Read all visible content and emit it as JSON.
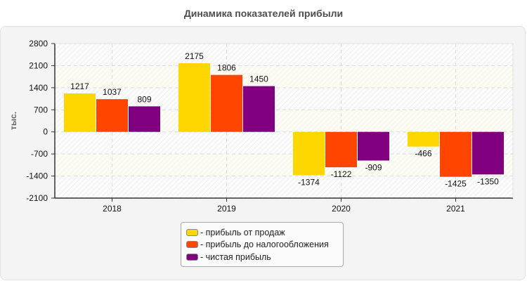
{
  "chart_data": {
    "type": "bar",
    "title": "Динамика показателей прибыли",
    "xlabel": "",
    "ylabel": "тыс.",
    "ylim": [
      -2100,
      2800
    ],
    "yticks": [
      2800,
      2100,
      1400,
      700,
      0,
      -700,
      -1400,
      -2100
    ],
    "categories": [
      "2018",
      "2019",
      "2020",
      "2021"
    ],
    "series": [
      {
        "name": "- прибыль от продаж",
        "color": "#FFD700",
        "values": [
          1217,
          2175,
          -1374,
          -466
        ]
      },
      {
        "name": "- прибыль до налогообложения",
        "color": "#FF4500",
        "values": [
          1037,
          1806,
          -1122,
          -1425
        ]
      },
      {
        "name": "- чистая прибыль",
        "color": "#800080",
        "values": [
          809,
          1450,
          -909,
          -1350
        ]
      }
    ],
    "grid": true,
    "legend_position": "bottom"
  },
  "legend": {
    "items": [
      "- прибыль от продаж",
      "- прибыль до налогообложения",
      "- чистая прибыль"
    ]
  }
}
